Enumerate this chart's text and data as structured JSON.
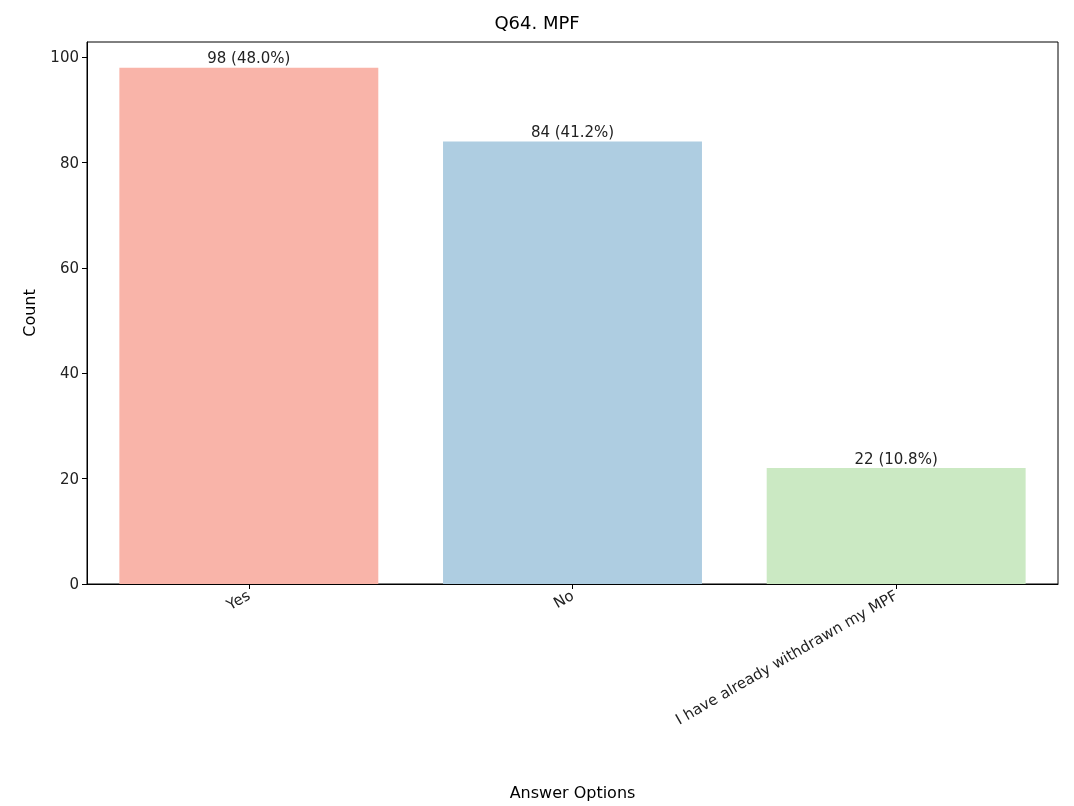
{
  "chart_data": {
    "type": "bar",
    "title": "Q64. MPF",
    "xlabel": "Answer Options",
    "ylabel": "Count",
    "categories": [
      "Yes",
      "No",
      "I have already withdrawn my MPF"
    ],
    "values": [
      98,
      84,
      22
    ],
    "colors": [
      "#f9b4a9",
      "#aecde1",
      "#cbe9c3"
    ],
    "value_labels": [
      "98 (48.0%)",
      "84 (41.2%)",
      "22 (10.8%)"
    ],
    "ylim": [
      0,
      102.9
    ],
    "yticks": [
      0,
      20,
      40,
      60,
      80,
      100
    ],
    "grid": false
  }
}
